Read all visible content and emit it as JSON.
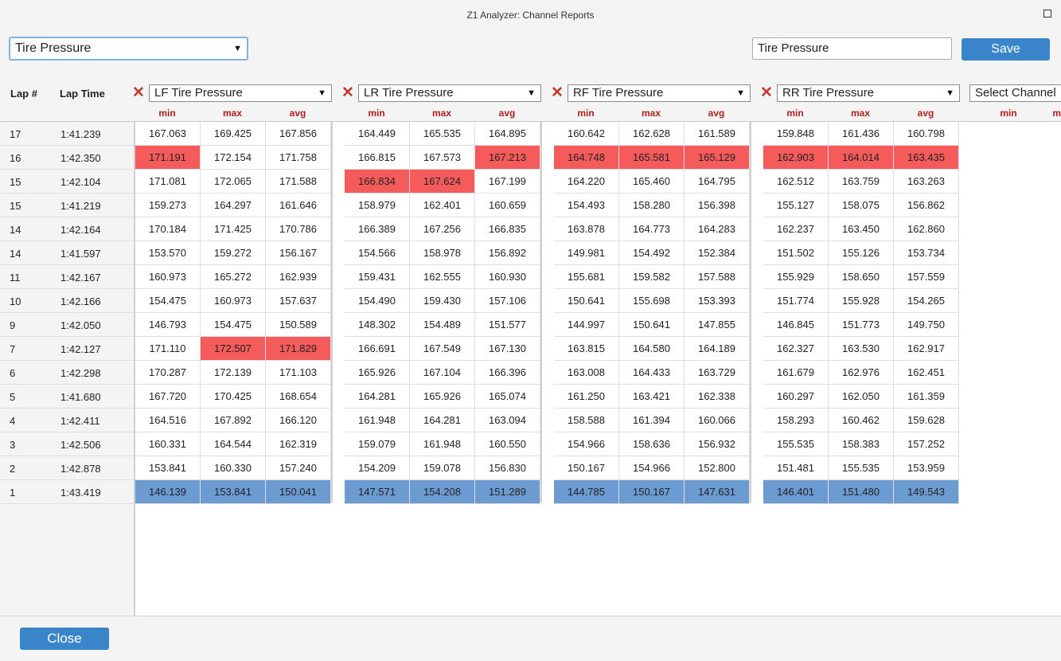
{
  "window": {
    "title": "Z1 Analyzer: Channel Reports"
  },
  "toolbar": {
    "preset": "Tire Pressure",
    "report_name": "Tire Pressure",
    "save_label": "Save"
  },
  "headers": {
    "lap": "Lap #",
    "lap_time": "Lap Time",
    "sub": [
      "min",
      "max",
      "avg"
    ]
  },
  "channels": [
    "LF Tire Pressure",
    "LR Tire Pressure",
    "RF Tire Pressure",
    "RR Tire Pressure"
  ],
  "channel_picker_placeholder": "Select Channel",
  "colors": {
    "max_highlight": "#f55b5b",
    "min_highlight": "#6c9bd1",
    "remove_icon": "#c0392b",
    "button": "#3a85c9"
  },
  "rows": [
    {
      "lap": "17",
      "time": "1:41.239",
      "values": [
        [
          "167.063",
          "169.425",
          "167.856"
        ],
        [
          "164.449",
          "165.535",
          "164.895"
        ],
        [
          "160.642",
          "162.628",
          "161.589"
        ],
        [
          "159.848",
          "161.436",
          "160.798"
        ]
      ]
    },
    {
      "lap": "16",
      "time": "1:42.350",
      "values": [
        [
          "171.191",
          "172.154",
          "171.758"
        ],
        [
          "166.815",
          "167.573",
          "167.213"
        ],
        [
          "164.748",
          "165.581",
          "165.129"
        ],
        [
          "162.903",
          "164.014",
          "163.435"
        ]
      ]
    },
    {
      "lap": "15",
      "time": "1:42.104",
      "values": [
        [
          "171.081",
          "172.065",
          "171.588"
        ],
        [
          "166.834",
          "167.624",
          "167.199"
        ],
        [
          "164.220",
          "165.460",
          "164.795"
        ],
        [
          "162.512",
          "163.759",
          "163.263"
        ]
      ]
    },
    {
      "lap": "15",
      "time": "1:41.219",
      "values": [
        [
          "159.273",
          "164.297",
          "161.646"
        ],
        [
          "158.979",
          "162.401",
          "160.659"
        ],
        [
          "154.493",
          "158.280",
          "156.398"
        ],
        [
          "155.127",
          "158.075",
          "156.862"
        ]
      ]
    },
    {
      "lap": "14",
      "time": "1:42.164",
      "values": [
        [
          "170.184",
          "171.425",
          "170.786"
        ],
        [
          "166.389",
          "167.256",
          "166.835"
        ],
        [
          "163.878",
          "164.773",
          "164.283"
        ],
        [
          "162.237",
          "163.450",
          "162.860"
        ]
      ]
    },
    {
      "lap": "14",
      "time": "1:41.597",
      "values": [
        [
          "153.570",
          "159.272",
          "156.167"
        ],
        [
          "154.566",
          "158.978",
          "156.892"
        ],
        [
          "149.981",
          "154.492",
          "152.384"
        ],
        [
          "151.502",
          "155.126",
          "153.734"
        ]
      ]
    },
    {
      "lap": "11",
      "time": "1:42.167",
      "values": [
        [
          "160.973",
          "165.272",
          "162.939"
        ],
        [
          "159.431",
          "162.555",
          "160.930"
        ],
        [
          "155.681",
          "159.582",
          "157.588"
        ],
        [
          "155.929",
          "158.650",
          "157.559"
        ]
      ]
    },
    {
      "lap": "10",
      "time": "1:42.166",
      "values": [
        [
          "154.475",
          "160.973",
          "157.637"
        ],
        [
          "154.490",
          "159.430",
          "157.106"
        ],
        [
          "150.641",
          "155.698",
          "153.393"
        ],
        [
          "151.774",
          "155.928",
          "154.265"
        ]
      ]
    },
    {
      "lap": "9",
      "time": "1:42.050",
      "values": [
        [
          "146.793",
          "154.475",
          "150.589"
        ],
        [
          "148.302",
          "154.489",
          "151.577"
        ],
        [
          "144.997",
          "150.641",
          "147.855"
        ],
        [
          "146.845",
          "151.773",
          "149.750"
        ]
      ]
    },
    {
      "lap": "7",
      "time": "1:42.127",
      "values": [
        [
          "171.110",
          "172.507",
          "171.829"
        ],
        [
          "166.691",
          "167.549",
          "167.130"
        ],
        [
          "163.815",
          "164.580",
          "164.189"
        ],
        [
          "162.327",
          "163.530",
          "162.917"
        ]
      ]
    },
    {
      "lap": "6",
      "time": "1:42.298",
      "values": [
        [
          "170.287",
          "172.139",
          "171.103"
        ],
        [
          "165.926",
          "167.104",
          "166.396"
        ],
        [
          "163.008",
          "164.433",
          "163.729"
        ],
        [
          "161.679",
          "162.976",
          "162.451"
        ]
      ]
    },
    {
      "lap": "5",
      "time": "1:41.680",
      "values": [
        [
          "167.720",
          "170.425",
          "168.654"
        ],
        [
          "164.281",
          "165.926",
          "165.074"
        ],
        [
          "161.250",
          "163.421",
          "162.338"
        ],
        [
          "160.297",
          "162.050",
          "161.359"
        ]
      ]
    },
    {
      "lap": "4",
      "time": "1:42.411",
      "values": [
        [
          "164.516",
          "167.892",
          "166.120"
        ],
        [
          "161.948",
          "164.281",
          "163.094"
        ],
        [
          "158.588",
          "161.394",
          "160.066"
        ],
        [
          "158.293",
          "160.462",
          "159.628"
        ]
      ]
    },
    {
      "lap": "3",
      "time": "1:42.506",
      "values": [
        [
          "160.331",
          "164.544",
          "162.319"
        ],
        [
          "159.079",
          "161.948",
          "160.550"
        ],
        [
          "154.966",
          "158.636",
          "156.932"
        ],
        [
          "155.535",
          "158.383",
          "157.252"
        ]
      ]
    },
    {
      "lap": "2",
      "time": "1:42.878",
      "values": [
        [
          "153.841",
          "160.330",
          "157.240"
        ],
        [
          "154.209",
          "159.078",
          "156.830"
        ],
        [
          "150.167",
          "154.966",
          "152.800"
        ],
        [
          "151.481",
          "155.535",
          "153.959"
        ]
      ]
    },
    {
      "lap": "1",
      "time": "1:43.419",
      "values": [
        [
          "146.139",
          "153.841",
          "150.041"
        ],
        [
          "147.571",
          "154.208",
          "151.289"
        ],
        [
          "144.785",
          "150.167",
          "147.631"
        ],
        [
          "146.401",
          "151.480",
          "149.543"
        ]
      ]
    }
  ],
  "highlights_max": [
    [
      9,
      0,
      1
    ],
    [
      9,
      0,
      2
    ],
    [
      1,
      0,
      0
    ],
    [
      2,
      1,
      0
    ],
    [
      2,
      1,
      1
    ],
    [
      1,
      1,
      2
    ],
    [
      1,
      2,
      0
    ],
    [
      1,
      2,
      1
    ],
    [
      1,
      2,
      2
    ],
    [
      1,
      3,
      0
    ],
    [
      1,
      3,
      1
    ],
    [
      1,
      3,
      2
    ]
  ],
  "highlights_min_row": 15,
  "footer": {
    "close_label": "Close"
  }
}
